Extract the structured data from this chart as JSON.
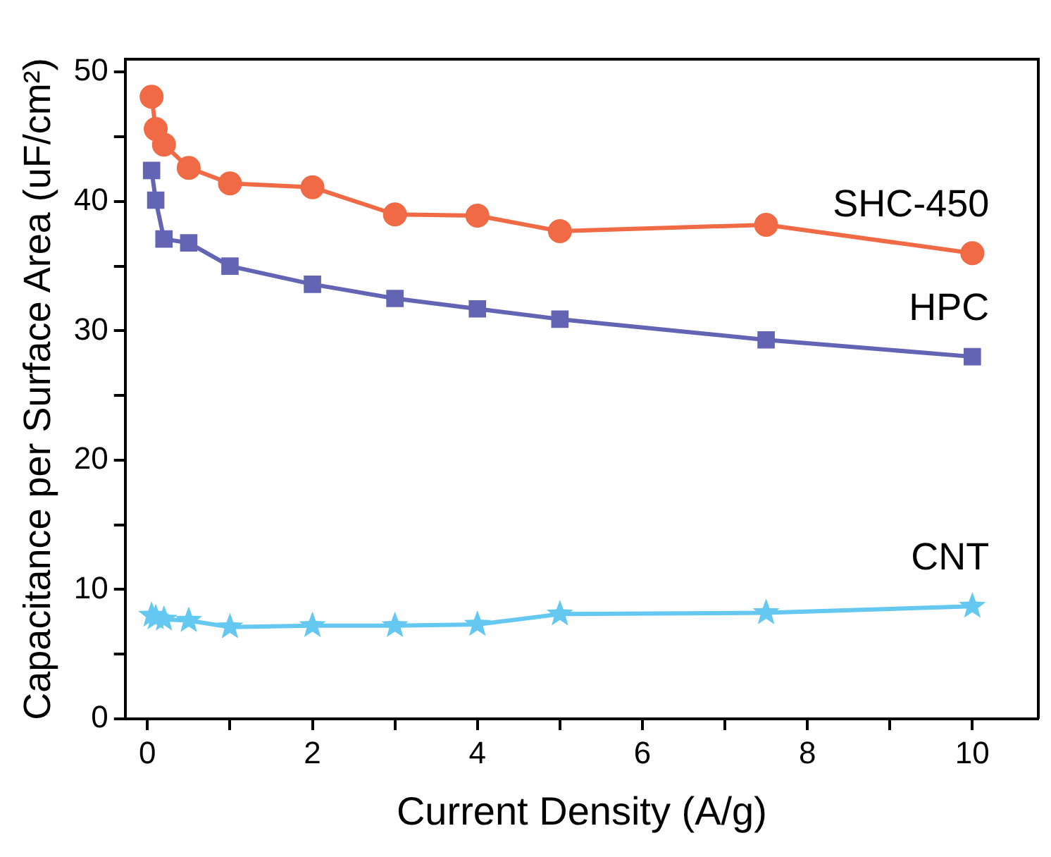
{
  "chart_data": {
    "type": "line",
    "xlabel": "Current Density (A/g)",
    "ylabel": "Capacitance per Surface Area (uF/cm²)",
    "xlim": [
      -0.27,
      10.8
    ],
    "ylim": [
      0,
      51
    ],
    "xticks": [
      0,
      {
        "value": 1,
        "label": null
      },
      2,
      {
        "value": 3,
        "label": null
      },
      4,
      {
        "value": 5,
        "label": null
      },
      6,
      {
        "value": 7,
        "label": null
      },
      8,
      {
        "value": 9,
        "label": null
      },
      10
    ],
    "yticks": [
      0,
      {
        "value": 5,
        "label": null
      },
      10,
      {
        "value": 15,
        "label": null
      },
      20,
      {
        "value": 25,
        "label": null
      },
      30,
      {
        "value": 35,
        "label": null
      },
      40,
      {
        "value": 45,
        "label": null
      },
      50
    ],
    "x": [
      0.05,
      0.1,
      0.2,
      0.5,
      1,
      2,
      3,
      4,
      5,
      7.5,
      10
    ],
    "grid": false,
    "legend": false,
    "line_style": "solid",
    "series": [
      {
        "name": "SHC-450",
        "color": "#f06a45",
        "marker": "circle",
        "values": [
          48.1,
          45.6,
          44.4,
          42.6,
          41.4,
          41.1,
          39.0,
          38.9,
          37.7,
          38.2,
          36.0
        ]
      },
      {
        "name": "HPC",
        "color": "#6464b4",
        "marker": "square",
        "values": [
          42.4,
          40.1,
          37.1,
          36.8,
          35.0,
          33.6,
          32.5,
          31.7,
          30.9,
          29.3,
          28.0
        ]
      },
      {
        "name": "CNT",
        "color": "#64c8f0",
        "marker": "star",
        "values": [
          8.0,
          7.8,
          7.7,
          7.6,
          7.1,
          7.2,
          7.2,
          7.3,
          8.1,
          8.2,
          8.7
        ]
      }
    ]
  }
}
